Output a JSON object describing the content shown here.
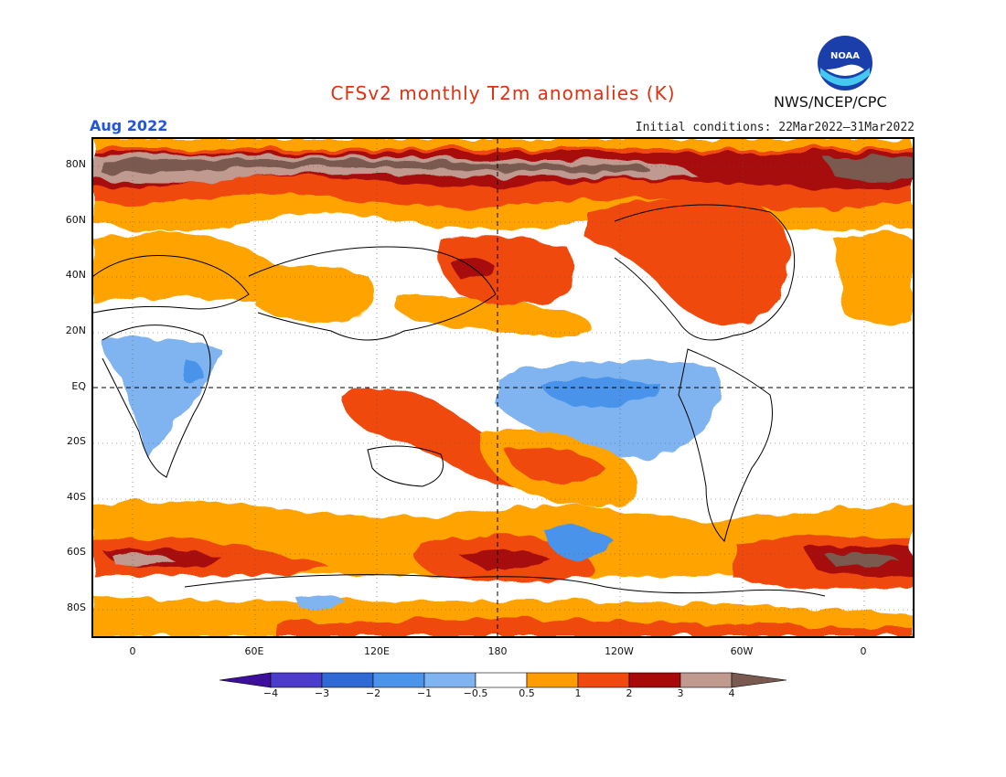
{
  "header": {
    "title": "CFSv2 monthly T2m anomalies (K)",
    "month": "Aug 2022",
    "initial_conditions": "Initial conditions: 22Mar2022–31Mar2022",
    "agency": "NWS/NCEP/CPC",
    "logo_text": "NOAA"
  },
  "axes": {
    "lat_labels": [
      "80N",
      "60N",
      "40N",
      "20N",
      "EQ",
      "20S",
      "40S",
      "60S",
      "80S"
    ],
    "lon_labels": [
      "0",
      "60E",
      "120E",
      "180",
      "120W",
      "60W",
      "0"
    ]
  },
  "legend": {
    "tick_labels": [
      "−4",
      "−3",
      "−2",
      "−1",
      "−0.5",
      "0.5",
      "1",
      "2",
      "3",
      "4"
    ],
    "colors": [
      "#3d0f9a",
      "#4a3dcc",
      "#2f69d6",
      "#4a94ea",
      "#7fb4f0",
      "#ffffff",
      "#ff9d00",
      "#f04a0e",
      "#a80a0a",
      "#c09a8f",
      "#7a5a50"
    ]
  },
  "colors": {
    "title": "#e03010",
    "month": "#2255dd",
    "cold_light": "#7fb4f0",
    "cold_mid": "#4a94ea",
    "warm_1": "#ffa300",
    "warm_2": "#f04a0e",
    "warm_3": "#a80a0a",
    "warm_4": "#c09a8f",
    "warm_5": "#7a5a50"
  }
}
